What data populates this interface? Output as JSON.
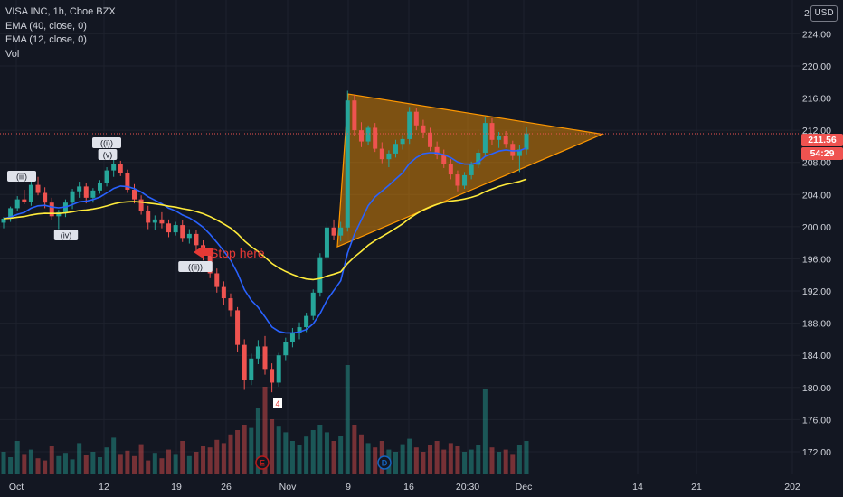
{
  "legend": {
    "symbol": "VISA INC, 1h, Cboe BZX",
    "ema40": "EMA (40, close, 0)",
    "ema12": "EMA (12, close, 0)",
    "vol": "Vol"
  },
  "currency_button": "USD",
  "price_tags": {
    "last_price": "211.56",
    "countdown": "54:29"
  },
  "colors": {
    "background": "#131722",
    "grid": "#1e222d",
    "up_candle": "#26a69a",
    "down_candle": "#ef5350",
    "ema40": "#ffeb3b",
    "ema12": "#2962ff",
    "triangle_fill": "#ff9800",
    "annotation_red": "#e53935"
  },
  "chart_data": {
    "type": "candlestick",
    "y_ticks": [
      "224.00",
      "220.00",
      "216.00",
      "212.00",
      "208.00",
      "204.00",
      "200.00",
      "196.00",
      "192.00",
      "188.00",
      "184.00",
      "180.00",
      "176.00",
      "172.00"
    ],
    "y_tick_values": [
      224,
      220,
      216,
      212,
      208,
      204,
      200,
      196,
      192,
      188,
      184,
      180,
      176,
      172
    ],
    "ylim": [
      169.3,
      228.2
    ],
    "x_ticks": [
      "Oct",
      "12",
      "19",
      "26",
      "Nov",
      "9",
      "16",
      "20:30",
      "Dec",
      "14",
      "21",
      "202"
    ],
    "closes_ohlc": [
      [
        200.5,
        201.2,
        199.8,
        201.0
      ],
      [
        201.0,
        202.5,
        200.6,
        202.3
      ],
      [
        202.3,
        203.8,
        201.9,
        203.4
      ],
      [
        203.4,
        204.6,
        202.8,
        203.1
      ],
      [
        203.1,
        205.9,
        202.6,
        205.2
      ],
      [
        205.2,
        206.2,
        203.9,
        204.2
      ],
      [
        204.2,
        204.9,
        202.3,
        203.0
      ],
      [
        203.0,
        203.6,
        200.8,
        201.3
      ],
      [
        201.3,
        202.1,
        199.7,
        201.8
      ],
      [
        201.8,
        203.4,
        201.2,
        203.0
      ],
      [
        203.0,
        204.7,
        202.2,
        204.4
      ],
      [
        204.4,
        205.6,
        203.6,
        205.0
      ],
      [
        205.0,
        205.4,
        202.9,
        203.6
      ],
      [
        203.6,
        204.8,
        203.0,
        204.5
      ],
      [
        204.5,
        205.8,
        204.1,
        205.4
      ],
      [
        205.4,
        207.4,
        205.0,
        207.0
      ],
      [
        207.0,
        208.4,
        206.2,
        207.8
      ],
      [
        207.8,
        208.2,
        206.3,
        206.7
      ],
      [
        206.7,
        207.1,
        204.2,
        204.6
      ],
      [
        204.6,
        205.3,
        202.9,
        203.4
      ],
      [
        203.4,
        203.9,
        201.5,
        202.0
      ],
      [
        202.0,
        202.6,
        199.7,
        200.5
      ],
      [
        200.5,
        201.4,
        199.6,
        200.9
      ],
      [
        200.9,
        201.8,
        199.8,
        200.4
      ],
      [
        200.4,
        200.9,
        198.7,
        199.3
      ],
      [
        199.3,
        200.6,
        198.9,
        200.2
      ],
      [
        200.2,
        200.8,
        198.1,
        198.6
      ],
      [
        198.6,
        199.7,
        197.9,
        199.1
      ],
      [
        199.1,
        199.6,
        197.0,
        197.7
      ],
      [
        197.7,
        198.3,
        195.8,
        196.4
      ],
      [
        196.4,
        196.9,
        193.6,
        194.2
      ],
      [
        194.2,
        194.8,
        191.8,
        192.5
      ],
      [
        192.5,
        193.2,
        190.3,
        191.1
      ],
      [
        191.1,
        191.7,
        188.8,
        189.6
      ],
      [
        189.6,
        190.0,
        184.4,
        185.3
      ],
      [
        185.3,
        186.0,
        179.7,
        180.9
      ],
      [
        180.9,
        184.2,
        180.3,
        183.6
      ],
      [
        183.6,
        185.9,
        182.9,
        185.1
      ],
      [
        185.1,
        186.4,
        181.6,
        182.3
      ],
      [
        182.3,
        183.0,
        179.4,
        180.6
      ],
      [
        180.6,
        184.3,
        180.1,
        184.0
      ],
      [
        184.0,
        186.2,
        183.4,
        185.7
      ],
      [
        185.7,
        187.4,
        185.0,
        186.8
      ],
      [
        186.8,
        188.1,
        186.0,
        187.5
      ],
      [
        187.5,
        189.3,
        186.9,
        188.9
      ],
      [
        188.9,
        192.2,
        188.4,
        191.8
      ],
      [
        191.8,
        196.7,
        191.3,
        196.2
      ],
      [
        196.2,
        200.5,
        195.8,
        199.9
      ],
      [
        199.9,
        200.9,
        198.3,
        198.9
      ],
      [
        198.9,
        200.6,
        198.2,
        199.9
      ],
      [
        199.9,
        216.9,
        199.4,
        215.7
      ],
      [
        215.7,
        216.4,
        211.3,
        212.0
      ],
      [
        212.0,
        213.0,
        209.9,
        210.6
      ],
      [
        210.6,
        212.6,
        210.1,
        212.3
      ],
      [
        212.3,
        212.9,
        209.3,
        209.7
      ],
      [
        209.7,
        210.5,
        207.9,
        208.4
      ],
      [
        208.4,
        209.5,
        207.4,
        209.1
      ],
      [
        209.1,
        210.8,
        208.6,
        210.3
      ],
      [
        210.3,
        211.4,
        209.6,
        210.9
      ],
      [
        210.9,
        214.9,
        210.3,
        214.3
      ],
      [
        214.3,
        214.8,
        212.0,
        212.6
      ],
      [
        212.6,
        213.3,
        211.0,
        211.7
      ],
      [
        211.7,
        212.3,
        209.4,
        209.9
      ],
      [
        209.9,
        210.6,
        208.4,
        209.0
      ],
      [
        209.0,
        209.6,
        207.3,
        207.8
      ],
      [
        207.8,
        208.4,
        205.9,
        206.5
      ],
      [
        206.5,
        207.0,
        204.4,
        205.1
      ],
      [
        205.1,
        206.8,
        204.7,
        206.4
      ],
      [
        206.4,
        208.1,
        205.9,
        207.7
      ],
      [
        207.7,
        209.6,
        207.3,
        209.2
      ],
      [
        209.2,
        213.7,
        208.8,
        212.9
      ],
      [
        212.9,
        213.5,
        210.2,
        210.8
      ],
      [
        210.8,
        211.8,
        209.8,
        211.3
      ],
      [
        211.3,
        211.9,
        209.8,
        210.3
      ],
      [
        210.3,
        210.7,
        208.3,
        208.8
      ],
      [
        208.8,
        210.2,
        206.8,
        209.6
      ],
      [
        209.6,
        212.4,
        209.0,
        211.6
      ]
    ],
    "volumes_relative": [
      0.2,
      0.15,
      0.3,
      0.18,
      0.22,
      0.14,
      0.12,
      0.25,
      0.16,
      0.19,
      0.13,
      0.28,
      0.17,
      0.2,
      0.15,
      0.24,
      0.33,
      0.18,
      0.21,
      0.16,
      0.27,
      0.12,
      0.19,
      0.14,
      0.22,
      0.18,
      0.3,
      0.16,
      0.2,
      0.25,
      0.24,
      0.31,
      0.28,
      0.36,
      0.4,
      0.45,
      0.42,
      0.6,
      0.8,
      0.5,
      0.44,
      0.38,
      0.3,
      0.26,
      0.34,
      0.4,
      0.45,
      0.38,
      0.3,
      0.35,
      1.0,
      0.45,
      0.36,
      0.28,
      0.24,
      0.3,
      0.22,
      0.2,
      0.27,
      0.32,
      0.24,
      0.2,
      0.26,
      0.3,
      0.22,
      0.28,
      0.25,
      0.2,
      0.22,
      0.26,
      0.78,
      0.24,
      0.2,
      0.22,
      0.18,
      0.26,
      0.3
    ],
    "annotations": {
      "wave_labels": [
        "(iii)",
        "(iv)",
        "((i))",
        "(v)",
        "((ii))",
        "4"
      ],
      "text_stop": "Stop here",
      "event_markers": [
        "E",
        "D"
      ]
    },
    "triangle_pattern": {
      "apex_price": 211.5,
      "upper_start": 216.5,
      "lower_start": 197.5
    },
    "last_price": 211.56
  }
}
